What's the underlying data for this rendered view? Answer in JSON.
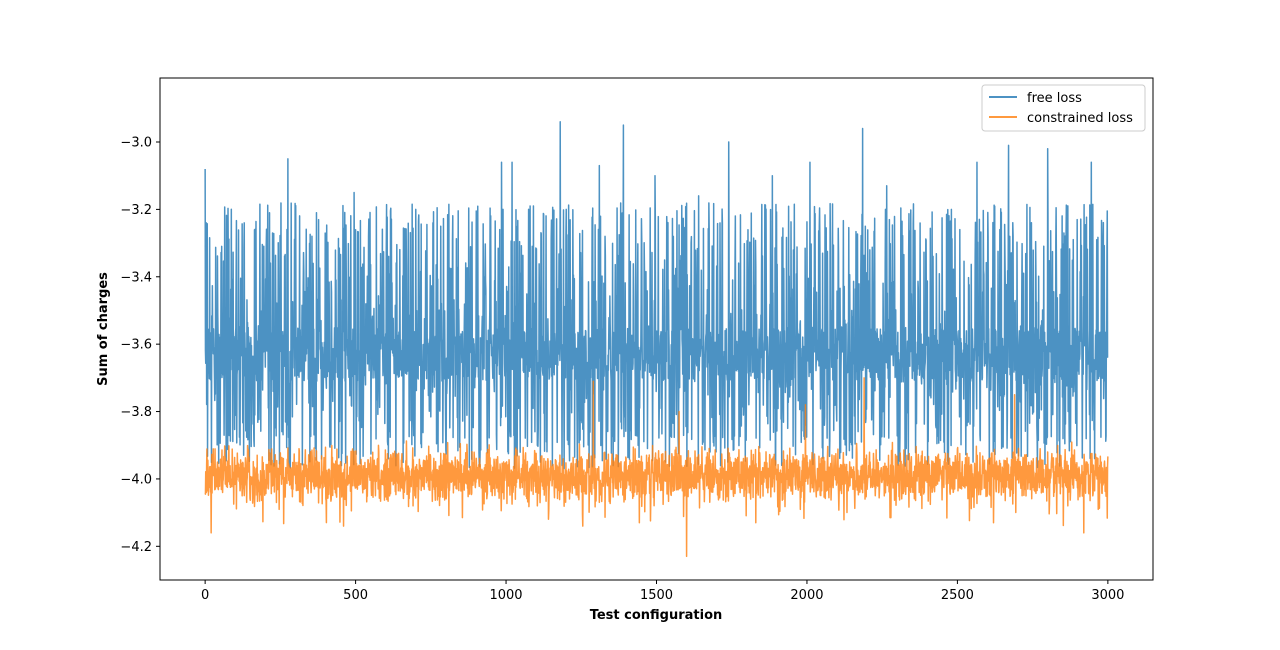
{
  "chart_data": {
    "type": "line",
    "title": "",
    "xlabel": "Test configuration",
    "ylabel": "Sum of charges",
    "xlim": [
      -150,
      3150
    ],
    "ylim": [
      -4.3,
      -2.81
    ],
    "x_ticks": [
      0,
      500,
      1000,
      1500,
      2000,
      2500,
      3000
    ],
    "x_tick_labels": [
      "0",
      "500",
      "1000",
      "1500",
      "2000",
      "2500",
      "3000"
    ],
    "y_ticks": [
      -4.2,
      -4.0,
      -3.8,
      -3.6,
      -3.4,
      -3.2,
      -3.0
    ],
    "y_tick_labels": [
      "−4.2",
      "−4.0",
      "−3.8",
      "−3.6",
      "−3.4",
      "−3.2",
      "−3.0"
    ],
    "grid": false,
    "legend_position": "top-right",
    "x_range": [
      0,
      3000
    ],
    "series": [
      {
        "name": "free loss",
        "color": "#1f77b4",
        "opacity": 0.8,
        "points": 3001,
        "stats": {
          "center": -3.63,
          "typical_min": -3.95,
          "typical_max": -3.3,
          "min": -4.08,
          "max": -2.88
        },
        "spikes": [
          [
            0,
            -3.08
          ],
          [
            130,
            -2.88
          ],
          [
            275,
            -3.05
          ],
          [
            370,
            -3.21
          ],
          [
            495,
            -3.15
          ],
          [
            700,
            -3.2
          ],
          [
            985,
            -3.06
          ],
          [
            1020,
            -3.06
          ],
          [
            1180,
            -2.94
          ],
          [
            1310,
            -3.07
          ],
          [
            1390,
            -2.95
          ],
          [
            1495,
            -3.1
          ],
          [
            1640,
            -3.16
          ],
          [
            1740,
            -3.0
          ],
          [
            1885,
            -3.1
          ],
          [
            2010,
            -3.06
          ],
          [
            2185,
            -2.96
          ],
          [
            2265,
            -3.13
          ],
          [
            2565,
            -3.06
          ],
          [
            2670,
            -3.01
          ],
          [
            2800,
            -3.02
          ],
          [
            2945,
            -3.06
          ],
          [
            130,
            -3.24
          ],
          [
            1080,
            -3.19
          ],
          [
            2480,
            -3.2
          ]
        ]
      },
      {
        "name": "constrained loss",
        "color": "#ff7f0e",
        "opacity": 0.8,
        "points": 3001,
        "stats": {
          "center": -3.99,
          "typical_min": -4.08,
          "typical_max": -3.9,
          "min": -4.23,
          "max": -3.7
        },
        "spikes": [
          [
            1600,
            -4.23
          ],
          [
            1290,
            -3.71
          ],
          [
            2190,
            -3.7
          ],
          [
            2690,
            -3.75
          ],
          [
            1995,
            -3.78
          ],
          [
            20,
            -4.16
          ],
          [
            2920,
            -4.16
          ],
          [
            1575,
            -3.8
          ],
          [
            1255,
            -4.14
          ],
          [
            2620,
            -4.13
          ],
          [
            1830,
            -4.13
          ],
          [
            460,
            -4.14
          ]
        ]
      }
    ]
  }
}
